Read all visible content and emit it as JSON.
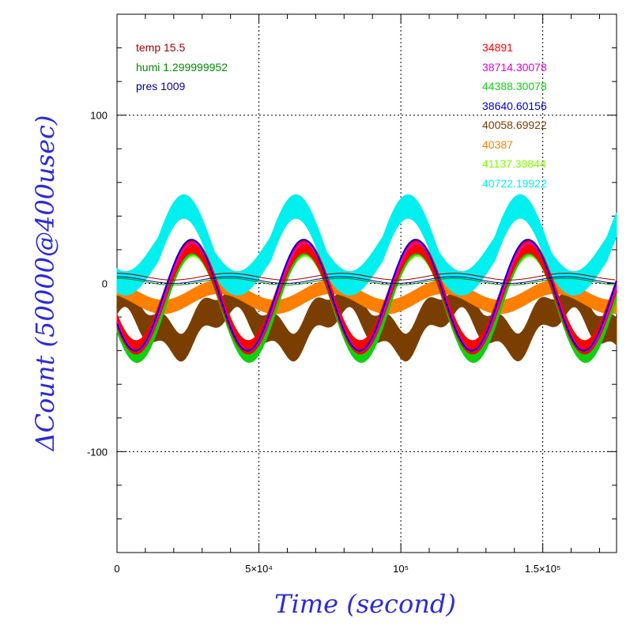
{
  "chart_data": {
    "type": "line",
    "xlabel": "Time (second)",
    "ylabel": "ΔCount (50000@400usec)",
    "xlim": [
      0,
      176000
    ],
    "ylim": [
      -160,
      160
    ],
    "x_ticks": [
      {
        "value": 0,
        "label": "0"
      },
      {
        "value": 50000,
        "label": "5×10⁴"
      },
      {
        "value": 100000,
        "label": "10⁵"
      },
      {
        "value": 150000,
        "label": "1.5×10⁵"
      }
    ],
    "y_ticks": [
      {
        "value": 100,
        "label": "100"
      },
      {
        "value": 0,
        "label": "0"
      },
      {
        "value": -100,
        "label": "-100"
      }
    ],
    "grid": true,
    "env_legend": [
      {
        "text": "temp 15.5",
        "color": "#a00000"
      },
      {
        "text": "humi 1.299999952",
        "color": "#008a00"
      },
      {
        "text": "pres 1009",
        "color": "#00008b"
      }
    ],
    "series": [
      {
        "name": "34891",
        "color": "#ff0000",
        "kind": "band",
        "amp": 30,
        "offset": -8,
        "phase": 0.0,
        "width": 8
      },
      {
        "name": "38714.30078",
        "color": "#e000e0",
        "kind": "line",
        "amp": 32,
        "offset": -8,
        "phase": 0.02,
        "width": 2
      },
      {
        "name": "44388.30078",
        "color": "#10d010",
        "kind": "band",
        "amp": 32,
        "offset": -12,
        "phase": 0.05,
        "width": 6
      },
      {
        "name": "38640.60156",
        "color": "#0000d0",
        "kind": "line",
        "amp": 33,
        "offset": -7,
        "phase": -0.04,
        "width": 2
      },
      {
        "name": "40058.69922",
        "color": "#7a3f00",
        "kind": "band",
        "amp": 12,
        "offset": -22,
        "phase": 2.2,
        "width": 16
      },
      {
        "name": "40387",
        "color": "#ff7f00",
        "kind": "band",
        "amp": 6,
        "offset": -8,
        "phase": 1.5,
        "width": 8
      },
      {
        "name": "41137.39844",
        "color": "#80ff00",
        "kind": "band",
        "amp": 30,
        "offset": -12,
        "phase": 0.05,
        "width": 4
      },
      {
        "name": "40722.19922",
        "color": "#00f0f0",
        "kind": "band",
        "amp": 16,
        "offset": 16,
        "phase": -0.6,
        "width": 14
      }
    ],
    "period": 39500,
    "peak_x": 26500
  }
}
